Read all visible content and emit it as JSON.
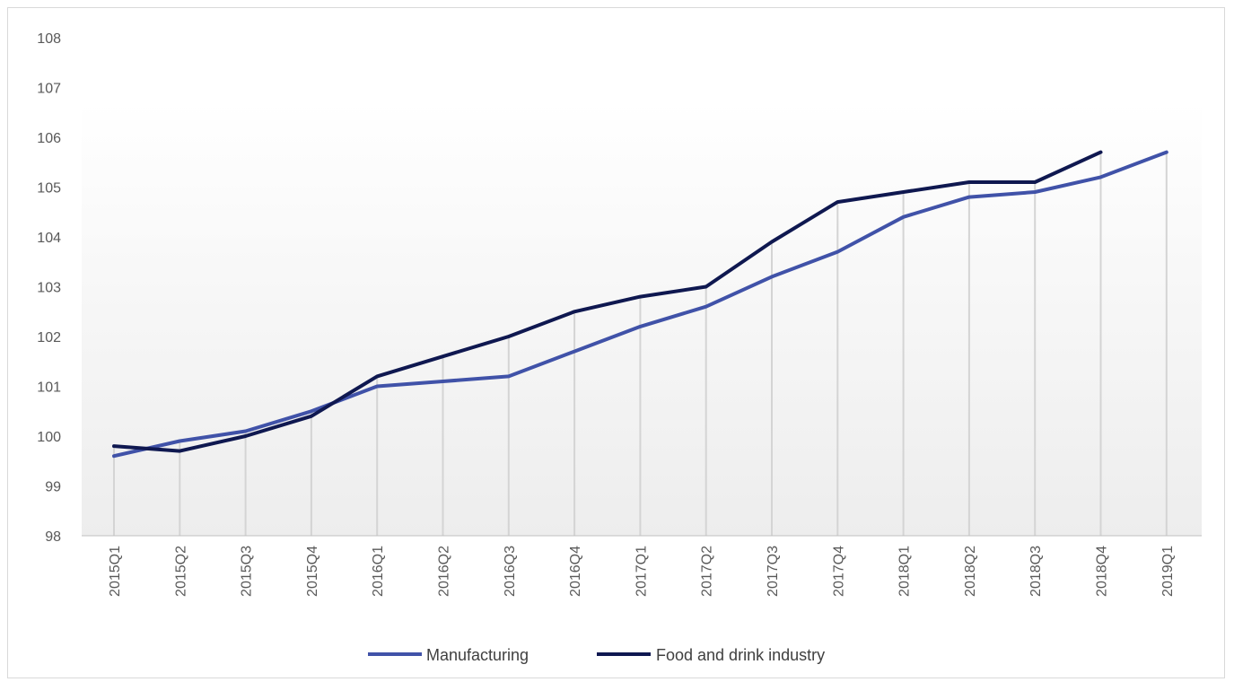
{
  "chart_data": {
    "type": "line",
    "title": "",
    "xlabel": "",
    "ylabel": "",
    "ylim": [
      98,
      108
    ],
    "yticks": [
      98,
      99,
      100,
      101,
      102,
      103,
      104,
      105,
      106,
      107,
      108
    ],
    "grid": "vertical drop lines",
    "legend_position": "bottom",
    "categories": [
      "2015Q1",
      "2015Q2",
      "2015Q3",
      "2015Q4",
      "2016Q1",
      "2016Q2",
      "2016Q3",
      "2016Q4",
      "2017Q1",
      "2017Q2",
      "2017Q3",
      "2017Q4",
      "2018Q1",
      "2018Q2",
      "2018Q3",
      "2018Q4",
      "2019Q1"
    ],
    "series": [
      {
        "name": "Manufacturing",
        "color": "#4052a8",
        "values": [
          99.6,
          99.9,
          100.1,
          100.5,
          101.0,
          101.1,
          101.2,
          101.7,
          102.2,
          102.6,
          103.2,
          103.7,
          104.4,
          104.8,
          104.9,
          105.2,
          105.7
        ]
      },
      {
        "name": "Food and drink industry",
        "color": "#0f1850",
        "values": [
          99.8,
          99.7,
          100.0,
          100.4,
          101.2,
          101.6,
          102.0,
          102.5,
          102.8,
          103.0,
          103.9,
          104.7,
          104.9,
          105.1,
          105.1,
          105.7,
          null
        ]
      }
    ]
  }
}
